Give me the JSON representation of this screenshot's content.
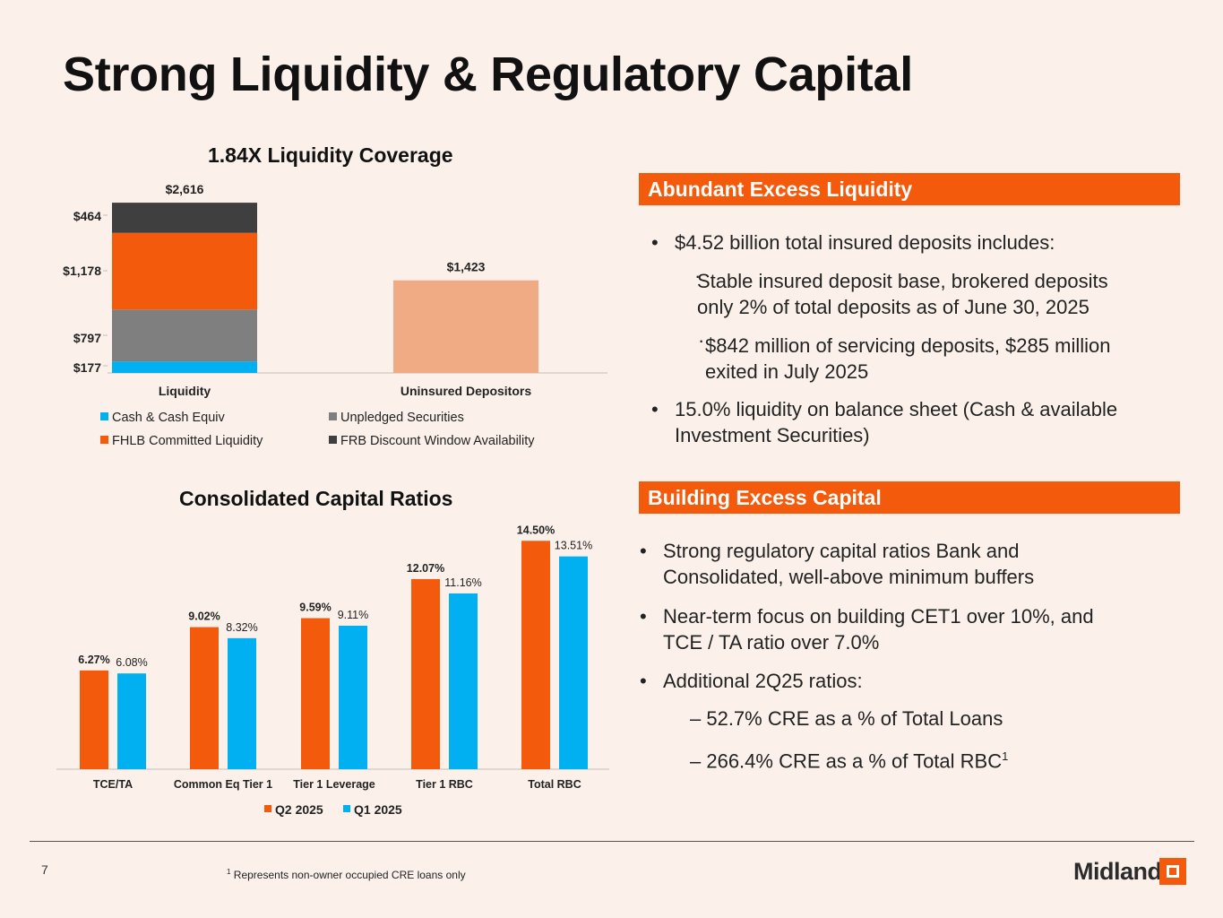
{
  "slide": {
    "title": "Strong Liquidity & Regulatory Capital",
    "page_number": "7",
    "footnote_marker": "1",
    "footnote_text": "Represents non-owner occupied CRE loans only",
    "logo_text": "Midland",
    "colors": {
      "accent": "#f45a0b",
      "background": "#fbf1ea",
      "cyan": "#00b0f0",
      "gray": "#7f7f7f",
      "dark": "#3f3f3f",
      "peach": "#f0ab84"
    }
  },
  "panels": {
    "liquidity": {
      "header": "Abundant Excess Liquidity",
      "bullet1": "$4.52 billion total insured deposits includes:",
      "sub1_line1": "Stable insured deposit base, brokered deposits",
      "sub1_line2": "only 2% of total deposits as of June 30, 2025",
      "sub2_line1": "$842 million of servicing deposits, $285 million",
      "sub2_line2": "exited in July 2025",
      "bullet2_line1": "15.0% liquidity on balance sheet (Cash & available",
      "bullet2_line2": "Investment Securities)"
    },
    "capital": {
      "header": "Building Excess Capital",
      "bullet1_line1": "Strong regulatory capital ratios Bank and",
      "bullet1_line2": "Consolidated, well-above minimum buffers",
      "bullet2_line1": "Near-term focus on building CET1 over 10%, and",
      "bullet2_line2": "TCE / TA ratio over 7.0%",
      "bullet3": "Additional 2Q25 ratios:",
      "sub1": "– 52.7% CRE as a % of Total Loans",
      "sub2": "– 266.4% CRE as a % of Total RBC",
      "sub2_sup": "1"
    }
  },
  "chart_data": [
    {
      "type": "bar",
      "stacked": true,
      "title": "1.84X Liquidity Coverage",
      "categories": [
        "Liquidity",
        "Uninsured Depositors"
      ],
      "series": [
        {
          "name": "Cash & Cash Equiv",
          "values": [
            177,
            0
          ],
          "color": "#00b0f0",
          "label": "$177"
        },
        {
          "name": "Unpledged Securities",
          "values": [
            797,
            0
          ],
          "color": "#7f7f7f",
          "label": "$797"
        },
        {
          "name": "FHLB Committed Liquidity",
          "values": [
            1178,
            0
          ],
          "color": "#f45a0b",
          "label": "$1,178"
        },
        {
          "name": "FRB Discount Window Availability",
          "values": [
            464,
            0
          ],
          "color": "#3f3f3f",
          "label": "$464"
        },
        {
          "name": "Uninsured Depositors",
          "values": [
            0,
            1423
          ],
          "color": "#f0ab84",
          "label": "$1,423"
        }
      ],
      "totals": [
        "$2,616",
        "$1,423"
      ],
      "ylim": [
        0,
        2700
      ],
      "legend": "bottom"
    },
    {
      "type": "bar",
      "title": "Consolidated Capital Ratios",
      "categories": [
        "TCE/TA",
        "Common Eq Tier 1",
        "Tier 1 Leverage",
        "Tier 1 RBC",
        "Total RBC"
      ],
      "series": [
        {
          "name": "Q2 2025",
          "color": "#f45a0b",
          "values": [
            6.27,
            9.02,
            9.59,
            12.07,
            14.5
          ],
          "labels": [
            "6.27%",
            "9.02%",
            "9.59%",
            "12.07%",
            "14.50%"
          ]
        },
        {
          "name": "Q1 2025",
          "color": "#00b0f0",
          "values": [
            6.08,
            8.32,
            9.11,
            11.16,
            13.51
          ],
          "labels": [
            "6.08%",
            "8.32%",
            "9.11%",
            "11.16%",
            "13.51%"
          ]
        }
      ],
      "ylim": [
        0,
        14.8
      ],
      "legend": "bottom"
    }
  ]
}
